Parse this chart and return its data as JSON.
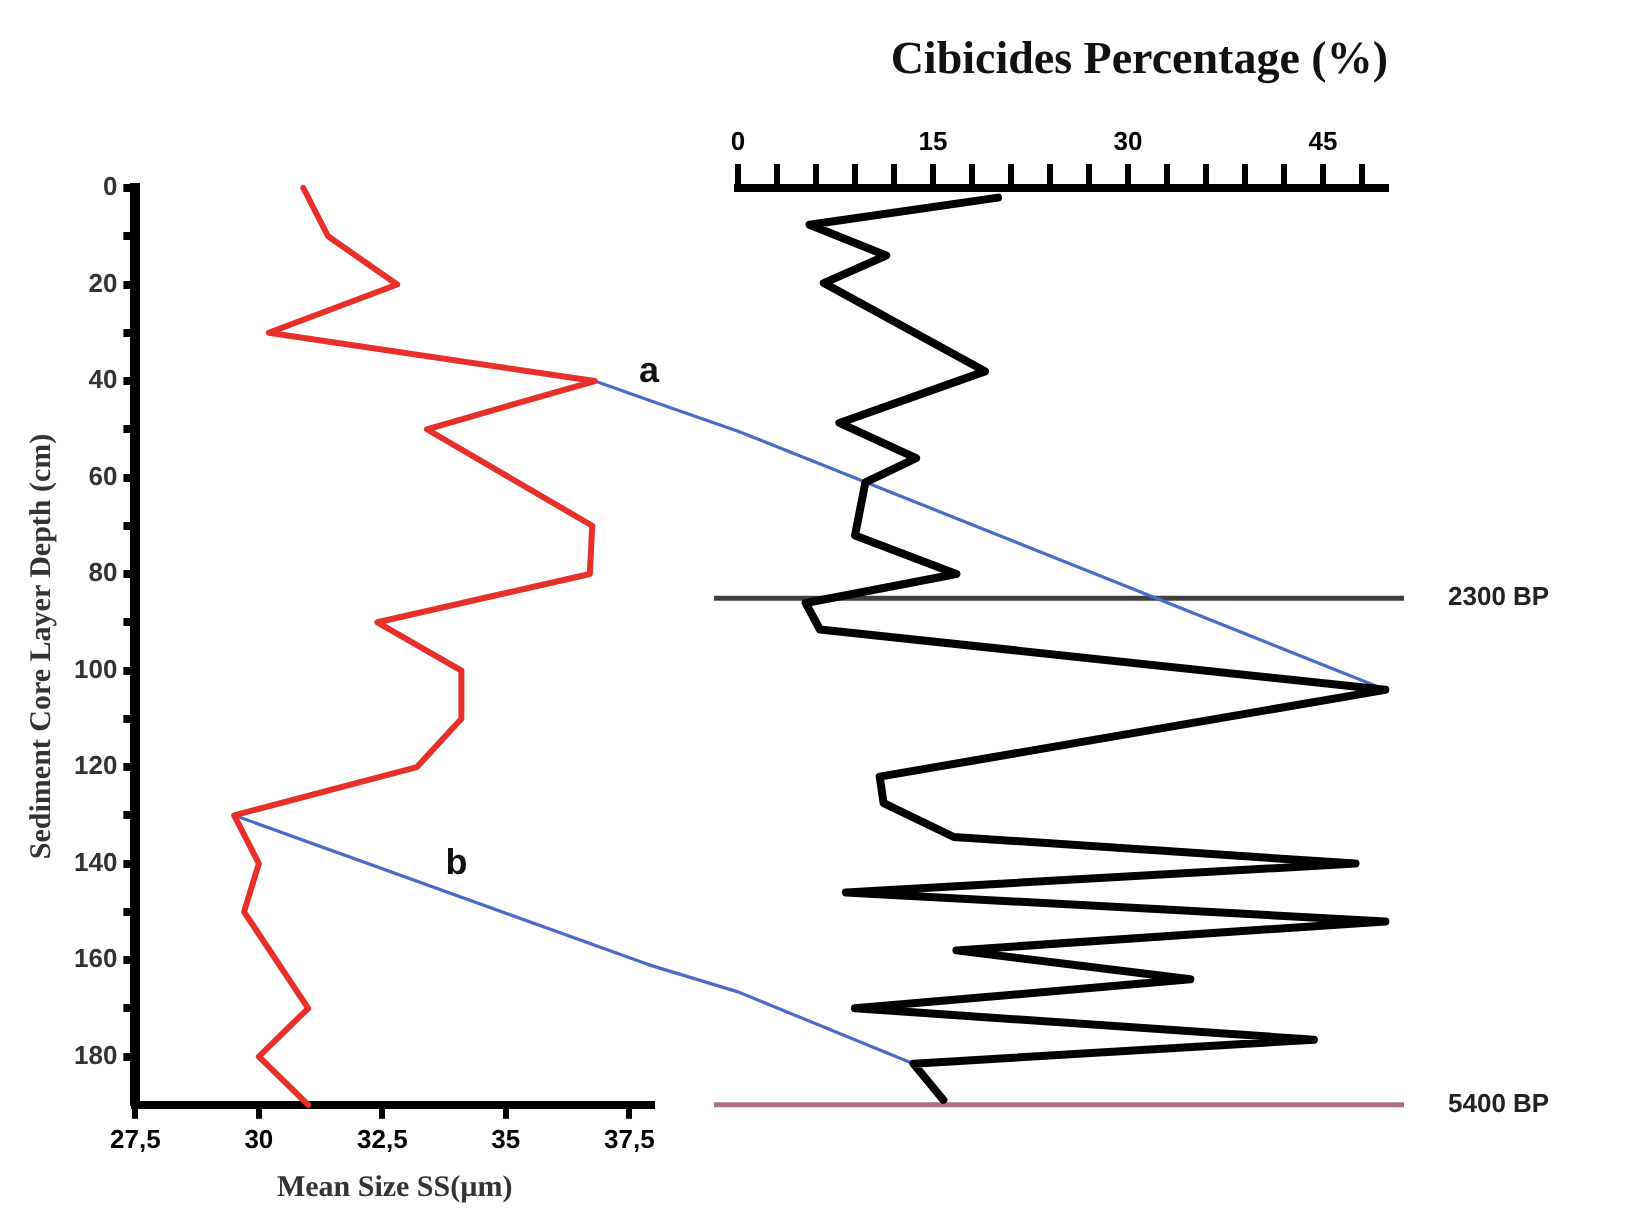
{
  "chart_data": [
    {
      "type": "line",
      "xlabel": "Mean Size SS(µm)",
      "ylabel": "Sediment Core Layer Depth (cm)",
      "xlim": [
        27.5,
        38
      ],
      "xticks": [
        {
          "value": 27.5,
          "label": "27,5"
        },
        30,
        {
          "value": 32.5,
          "label": "32,5"
        },
        35,
        {
          "value": 37.5,
          "label": "37,5"
        }
      ],
      "ylim": [
        190,
        0
      ],
      "yticks": [
        0,
        {
          "value": 10,
          "label": null
        },
        20,
        {
          "value": 30,
          "label": null
        },
        40,
        {
          "value": 50,
          "label": null
        },
        60,
        {
          "value": 70,
          "label": null
        },
        80,
        {
          "value": 90,
          "label": null
        },
        100,
        {
          "value": 110,
          "label": null
        },
        120,
        {
          "value": 130,
          "label": null
        },
        140,
        {
          "value": 150,
          "label": null
        },
        160,
        {
          "value": 170,
          "label": null
        },
        180
      ],
      "marker": "none",
      "series": [
        {
          "color": "#e8302a",
          "x": [
            30.9,
            31.4,
            32.8,
            30.2,
            36.8,
            33.4,
            36.75,
            36.7,
            32.4,
            34.1,
            34.1,
            33.2,
            29.5,
            30,
            29.7,
            31,
            30,
            31
          ],
          "values": [
            0,
            10,
            20,
            30,
            40,
            50,
            70,
            80,
            90,
            100,
            110,
            120,
            130,
            140,
            150,
            170,
            180,
            190
          ]
        },
        {
          "color": "#4a6cc8",
          "x": [
            36.8,
            37.9
          ],
          "values": [
            40,
            44
          ]
        },
        {
          "color": "#4a6cc8",
          "x": [
            29.5,
            37.9
          ],
          "values": [
            130,
            161
          ]
        }
      ],
      "annotations": [
        {
          "text": "a",
          "x": 37.9,
          "y": 44
        },
        {
          "text": "b",
          "x": 34,
          "y": 146
        }
      ]
    },
    {
      "type": "line",
      "title": "Cibicides Percentage (%)",
      "xlim": [
        0,
        50
      ],
      "xticks": [
        0,
        {
          "value": 3,
          "label": null
        },
        {
          "value": 6,
          "label": null
        },
        {
          "value": 9,
          "label": null
        },
        {
          "value": 12,
          "label": null
        },
        15,
        {
          "value": 18,
          "label": null
        },
        {
          "value": 21,
          "label": null
        },
        {
          "value": 24,
          "label": null
        },
        {
          "value": 27,
          "label": null
        },
        30,
        {
          "value": 33,
          "label": null
        },
        {
          "value": 36,
          "label": null
        },
        {
          "value": 39,
          "label": null
        },
        {
          "value": 42,
          "label": null
        },
        45,
        {
          "value": 48,
          "label": null
        }
      ],
      "ylim": [
        190,
        0
      ],
      "tick_labels": "x",
      "marker": "none",
      "series": [
        {
          "color": "#000000",
          "x": [
            20,
            5.5,
            11.4,
            6.6,
            19,
            7.8,
            13.7,
            9.8,
            9,
            16.8,
            5.2,
            6.3,
            49.8,
            10.9,
            11.2,
            16.6,
            47.5,
            8.3,
            49.8,
            16.8,
            34.8,
            9,
            44.3,
            13.5,
            15.8
          ],
          "values": [
            2,
            7.6,
            14,
            19.7,
            38,
            48.7,
            56,
            61,
            72,
            80,
            86,
            91.5,
            104,
            122,
            127.5,
            134.5,
            140,
            146,
            152,
            158,
            164,
            170,
            176.5,
            181.5,
            189
          ]
        },
        {
          "color": "#4a6cc8",
          "x": [
            0,
            49.8
          ],
          "values": [
            50.4,
            104
          ]
        },
        {
          "color": "#4a6cc8",
          "x": [
            0,
            13.5
          ],
          "values": [
            166.6,
            181.5
          ]
        }
      ],
      "ref_lines": [
        {
          "axis": "y",
          "value": 85,
          "label": "2300 BP",
          "color": "#404040"
        },
        {
          "axis": "y",
          "value": 190,
          "label": "5400 BP",
          "color": "#b07080"
        }
      ]
    }
  ]
}
